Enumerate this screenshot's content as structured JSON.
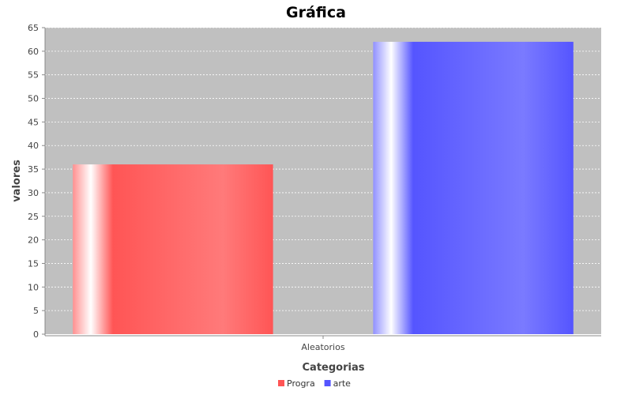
{
  "chart_data": {
    "type": "bar",
    "title": "Gráfica",
    "xlabel": "Categorias",
    "ylabel": "valores",
    "categories": [
      "Aleatorios"
    ],
    "series": [
      {
        "name": "Progra",
        "values": [
          36
        ],
        "color": "#ff5555"
      },
      {
        "name": "arte",
        "values": [
          62
        ],
        "color": "#5555ff"
      }
    ],
    "ylim": [
      0,
      65
    ],
    "yticks": [
      0,
      5,
      10,
      15,
      20,
      25,
      30,
      35,
      40,
      45,
      50,
      55,
      60,
      65
    ],
    "grid": true,
    "legend": "bottom",
    "plot_background": "#c0c0c0"
  }
}
